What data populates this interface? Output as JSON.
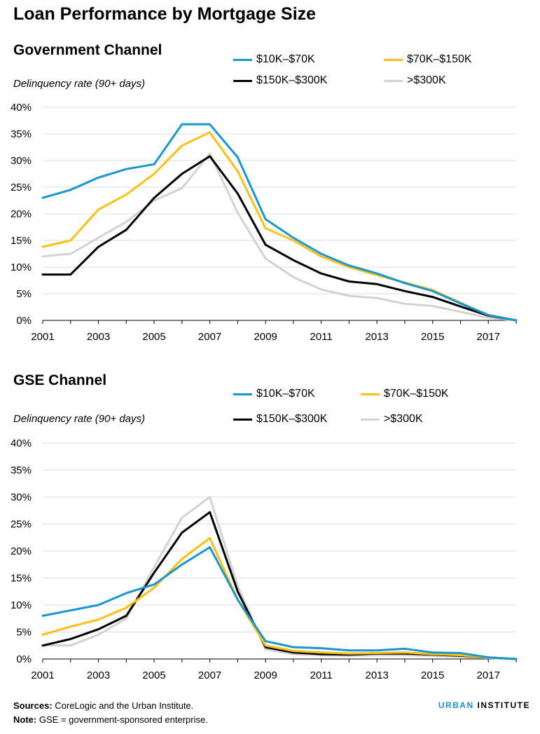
{
  "title": "Loan Performance by Mortgage Size",
  "colors": {
    "s1": "#1696d2",
    "s2": "#fdbf11",
    "s3": "#000000",
    "s4": "#d2d2d2",
    "grid": "#dedede"
  },
  "footer": {
    "sources_label": "Sources:",
    "sources_text": "CoreLogic and the Urban Institute.",
    "note_label": "Note:",
    "note_text": "GSE = government-sponsored enterprise."
  },
  "logo": {
    "urban": "URBAN",
    "institute": "INSTITUTE"
  },
  "chart_data": [
    {
      "type": "line",
      "title": "Government Channel",
      "ylabel": "Delinquency rate (90+ days)",
      "ylim": [
        0,
        40
      ],
      "yticks": [
        "0%",
        "5%",
        "10%",
        "15%",
        "20%",
        "25%",
        "30%",
        "35%",
        "40%"
      ],
      "xticks": [
        "2001",
        "2003",
        "2005",
        "2007",
        "2009",
        "2011",
        "2013",
        "2015",
        "2017"
      ],
      "x": [
        2001,
        2002,
        2003,
        2004,
        2005,
        2006,
        2007,
        2008,
        2009,
        2010,
        2011,
        2012,
        2013,
        2014,
        2015,
        2016,
        2017,
        2018
      ],
      "grid": true,
      "legend_position": "top-right",
      "series": [
        {
          "name": "$10K–$70K",
          "values": [
            23.0,
            24.5,
            26.8,
            28.4,
            29.3,
            36.8,
            36.8,
            30.6,
            19.0,
            15.5,
            12.5,
            10.3,
            8.8,
            7.0,
            5.5,
            3.2,
            1.0,
            0.0
          ]
        },
        {
          "name": "$70K–$150K",
          "values": [
            13.8,
            15.0,
            20.8,
            23.6,
            27.5,
            32.8,
            35.3,
            28.0,
            17.3,
            15.0,
            12.0,
            10.0,
            8.5,
            7.1,
            5.7,
            3.3,
            1.0,
            0.0
          ]
        },
        {
          "name": "$150K–$300K",
          "values": [
            8.6,
            8.6,
            13.8,
            17.0,
            23.0,
            27.5,
            30.8,
            23.8,
            14.2,
            11.3,
            8.8,
            7.3,
            6.8,
            5.5,
            4.4,
            2.6,
            0.9,
            0.0
          ]
        },
        {
          "name": ">$300K",
          "values": [
            12.0,
            12.5,
            15.5,
            18.5,
            22.5,
            24.8,
            31.3,
            20.2,
            11.6,
            8.1,
            5.8,
            4.6,
            4.2,
            3.1,
            2.7,
            1.6,
            0.5,
            0.0
          ]
        }
      ]
    },
    {
      "type": "line",
      "title": "GSE Channel",
      "ylabel": "Delinquency rate (90+ days)",
      "ylim": [
        0,
        40
      ],
      "yticks": [
        "0%",
        "5%",
        "10%",
        "15%",
        "20%",
        "25%",
        "30%",
        "35%",
        "40%"
      ],
      "xticks": [
        "2001",
        "2003",
        "2005",
        "2007",
        "2009",
        "2011",
        "2013",
        "2015",
        "2017"
      ],
      "x": [
        2001,
        2002,
        2003,
        2004,
        2005,
        2006,
        2007,
        2008,
        2009,
        2010,
        2011,
        2012,
        2013,
        2014,
        2015,
        2016,
        2017,
        2018
      ],
      "grid": true,
      "legend_position": "top-right",
      "series": [
        {
          "name": "$10K–$70K",
          "values": [
            8.0,
            9.0,
            10.0,
            12.2,
            13.8,
            17.5,
            20.7,
            11.0,
            3.3,
            2.2,
            2.0,
            1.6,
            1.6,
            1.9,
            1.2,
            1.1,
            0.3,
            0.0
          ]
        },
        {
          "name": "$70K–$150K",
          "values": [
            4.5,
            6.0,
            7.3,
            9.5,
            13.2,
            18.5,
            22.4,
            11.0,
            2.5,
            1.5,
            1.2,
            1.0,
            1.1,
            1.2,
            0.9,
            0.7,
            0.3,
            0.0
          ]
        },
        {
          "name": "$150K–$300K",
          "values": [
            2.5,
            3.7,
            5.5,
            8.0,
            16.0,
            23.4,
            27.2,
            12.5,
            2.2,
            1.2,
            0.9,
            0.8,
            1.0,
            1.0,
            0.8,
            0.6,
            0.3,
            0.0
          ]
        },
        {
          "name": ">$300K",
          "values": [
            2.5,
            2.5,
            4.5,
            7.5,
            17.0,
            26.2,
            30.0,
            13.5,
            1.8,
            0.9,
            0.7,
            0.6,
            0.7,
            0.7,
            0.6,
            0.4,
            0.2,
            0.0
          ]
        }
      ]
    }
  ]
}
